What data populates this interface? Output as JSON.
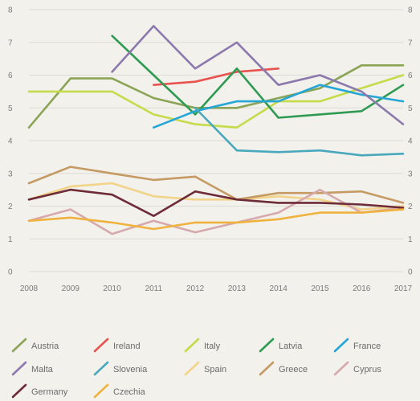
{
  "chart_data": {
    "type": "line",
    "title": "",
    "xlabel": "",
    "ylabel": "",
    "ylim": [
      0,
      8
    ],
    "yticks": [
      "0",
      "1",
      "2",
      "3",
      "4",
      "5",
      "6",
      "7",
      "8"
    ],
    "grid": true,
    "legend_position": "bottom",
    "categories": [
      "2008",
      "2009",
      "2010",
      "2011",
      "2012",
      "2013",
      "2014",
      "2015",
      "2016",
      "2017"
    ],
    "series": [
      {
        "name": "Austria",
        "color": "#8ba455",
        "values": [
          4.4,
          5.9,
          5.9,
          5.3,
          5.0,
          5.0,
          5.3,
          5.6,
          6.3,
          6.3
        ]
      },
      {
        "name": "Ireland",
        "color": "#e8534f",
        "values": [
          null,
          null,
          null,
          5.7,
          5.8,
          6.1,
          6.2,
          null,
          null,
          null
        ]
      },
      {
        "name": "Italy",
        "color": "#c7db4a",
        "values": [
          5.5,
          5.5,
          5.5,
          4.8,
          4.5,
          4.4,
          5.2,
          5.2,
          5.6,
          6.0
        ]
      },
      {
        "name": "Latvia",
        "color": "#2f9b52",
        "values": [
          null,
          null,
          7.2,
          6.0,
          4.8,
          6.2,
          4.7,
          4.8,
          4.9,
          5.7
        ]
      },
      {
        "name": "France",
        "color": "#26a6d6",
        "values": [
          null,
          null,
          null,
          4.4,
          4.9,
          5.2,
          5.2,
          5.7,
          5.4,
          5.2
        ]
      },
      {
        "name": "Malta",
        "color": "#8c79ad",
        "values": [
          null,
          null,
          6.1,
          7.5,
          6.2,
          7.0,
          5.7,
          6.0,
          5.5,
          4.5
        ]
      },
      {
        "name": "Slovenia",
        "color": "#4aa8bd",
        "values": [
          null,
          null,
          null,
          null,
          5.0,
          3.7,
          3.65,
          3.7,
          3.55,
          3.6
        ]
      },
      {
        "name": "Spain",
        "color": "#f2d38a",
        "values": [
          2.2,
          2.6,
          2.7,
          2.3,
          2.2,
          2.2,
          2.3,
          2.2,
          1.9,
          2.0
        ]
      },
      {
        "name": "Greece",
        "color": "#c59a63",
        "values": [
          2.7,
          3.2,
          3.0,
          2.8,
          2.9,
          2.2,
          2.4,
          2.4,
          2.45,
          2.1
        ]
      },
      {
        "name": "Cyprus",
        "color": "#d6a9ad",
        "values": [
          1.55,
          1.9,
          1.15,
          1.55,
          1.2,
          1.5,
          1.8,
          2.5,
          1.8,
          1.95
        ]
      },
      {
        "name": "Germany",
        "color": "#6e2b38",
        "values": [
          2.2,
          2.5,
          2.35,
          1.7,
          2.45,
          2.2,
          2.1,
          2.1,
          2.05,
          1.95
        ]
      },
      {
        "name": "Czechia",
        "color": "#f0b23e",
        "values": [
          1.55,
          1.65,
          1.5,
          1.3,
          1.5,
          1.5,
          1.6,
          1.8,
          1.8,
          1.9
        ]
      }
    ]
  }
}
